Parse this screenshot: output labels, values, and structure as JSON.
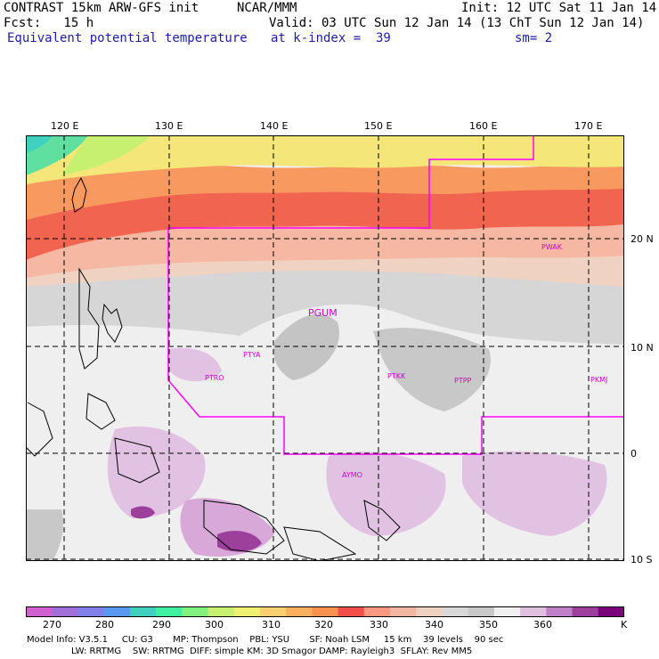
{
  "header": {
    "left1": "CONTRAST 15km ARW-GFS init",
    "center1": "NCAR/MMM",
    "right1": "Init: 12 UTC Sat 11 Jan 14",
    "left2": "Fcst:   15 h",
    "right2": "Valid: 03 UTC Sun 12 Jan 14 (13 ChT Sun 12 Jan 14)",
    "field": "Equivalent potential temperature",
    "level": "at k-index =  39",
    "smooth": "sm= 2"
  },
  "map": {
    "lon_labels": [
      "120 E",
      "130 E",
      "140 E",
      "150 E",
      "160 E",
      "170 E"
    ],
    "lat_labels": [
      "20 N",
      "10 N",
      "0",
      "10 S"
    ],
    "stations": [
      "PWAK",
      "PGUM",
      "PTYA",
      "PTRO",
      "PTKK",
      "PTPP",
      "PKMJ",
      "AYMO"
    ]
  },
  "colorbar": {
    "labels": [
      "270",
      "280",
      "290",
      "300",
      "310",
      "320",
      "330",
      "340",
      "350",
      "360"
    ],
    "unit": "K",
    "colors": [
      "#d060d0",
      "#a070d8",
      "#8080e8",
      "#5898f0",
      "#40d0c0",
      "#40f0a0",
      "#80f080",
      "#c8f070",
      "#f0f070",
      "#f8d070",
      "#f8b060",
      "#f89050",
      "#f05048",
      "#f89880",
      "#f0b8a0",
      "#f0d0c0",
      "#d8d8d8",
      "#c8c8c8",
      "#f0f0f0",
      "#e0c0e0",
      "#c080c8",
      "#9c409c",
      "#780078"
    ]
  },
  "model_info": {
    "line1": "Model Info: V3.5.1     CU: G3       MP: Thompson    PBL: YSU       SF: Noah LSM     15 km    39 levels    90 sec",
    "line2": "LW: RRTMG    SW: RRTMG  DIFF: simple KM: 3D Smagor DAMP: Rayleigh3  SFLAY: Rev MM5"
  }
}
